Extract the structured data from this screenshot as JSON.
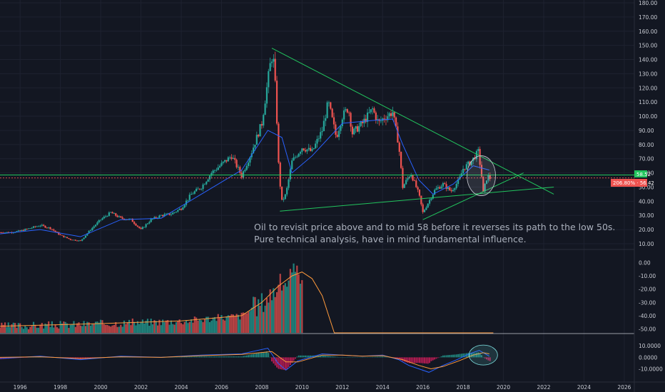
{
  "chart_data": [
    {
      "type": "candlestick",
      "title": "",
      "y_axis_ticks": [
        "180.00",
        "170.00",
        "160.00",
        "150.00",
        "140.00",
        "130.00",
        "120.00",
        "110.00",
        "100.00",
        "90.00",
        "80.00",
        "70.00",
        "60.00",
        "50.00",
        "40.00",
        "30.00",
        "20.00",
        "10.00"
      ],
      "ylim": [
        10,
        180
      ],
      "x_axis_ticks": [
        "1996",
        "1998",
        "2000",
        "2002",
        "2004",
        "2006",
        "2008",
        "2010",
        "2012",
        "2014",
        "2016",
        "2018",
        "2020",
        "2022",
        "2024",
        "2026"
      ],
      "xlim": [
        1995,
        2026.5
      ],
      "series": [
        {
          "values": [
            [
              1995.0,
              18
            ],
            [
              1995.5,
              18
            ],
            [
              1996.0,
              19
            ],
            [
              1996.5,
              21
            ],
            [
              1997.0,
              23
            ],
            [
              1997.5,
              21
            ],
            [
              1998.0,
              16
            ],
            [
              1998.5,
              13
            ],
            [
              1999.0,
              12
            ],
            [
              1999.5,
              20
            ],
            [
              2000.0,
              27
            ],
            [
              2000.5,
              32
            ],
            [
              2001.0,
              28
            ],
            [
              2001.5,
              27
            ],
            [
              2002.0,
              20
            ],
            [
              2002.5,
              27
            ],
            [
              2003.0,
              30
            ],
            [
              2003.5,
              31
            ],
            [
              2004.0,
              35
            ],
            [
              2004.5,
              45
            ],
            [
              2005.0,
              50
            ],
            [
              2005.5,
              60
            ],
            [
              2006.0,
              66
            ],
            [
              2006.5,
              72
            ],
            [
              2007.0,
              58
            ],
            [
              2007.5,
              75
            ],
            [
              2008.0,
              95
            ],
            [
              2008.4,
              135
            ],
            [
              2008.55,
              145
            ],
            [
              2008.7,
              115
            ],
            [
              2008.85,
              60
            ],
            [
              2009.0,
              40
            ],
            [
              2009.2,
              45
            ],
            [
              2009.5,
              68
            ],
            [
              2010.0,
              78
            ],
            [
              2010.5,
              75
            ],
            [
              2011.0,
              90
            ],
            [
              2011.3,
              110
            ],
            [
              2011.7,
              85
            ],
            [
              2012.0,
              100
            ],
            [
              2012.3,
              106
            ],
            [
              2012.5,
              88
            ],
            [
              2013.0,
              95
            ],
            [
              2013.5,
              105
            ],
            [
              2013.8,
              95
            ],
            [
              2014.0,
              98
            ],
            [
              2014.5,
              103
            ],
            [
              2014.8,
              80
            ],
            [
              2015.0,
              50
            ],
            [
              2015.4,
              60
            ],
            [
              2015.8,
              45
            ],
            [
              2016.0,
              32
            ],
            [
              2016.3,
              40
            ],
            [
              2016.6,
              48
            ],
            [
              2017.0,
              52
            ],
            [
              2017.4,
              47
            ],
            [
              2017.8,
              55
            ],
            [
              2018.0,
              63
            ],
            [
              2018.4,
              68
            ],
            [
              2018.75,
              75
            ],
            [
              2018.9,
              60
            ],
            [
              2019.0,
              46
            ],
            [
              2019.2,
              58
            ],
            [
              2019.35,
              56
            ]
          ]
        }
      ],
      "moving_average": [
        [
          1995,
          17
        ],
        [
          1997,
          20
        ],
        [
          1999,
          15
        ],
        [
          2001,
          27
        ],
        [
          2003,
          28
        ],
        [
          2005,
          45
        ],
        [
          2007,
          62
        ],
        [
          2008.3,
          90
        ],
        [
          2009,
          85
        ],
        [
          2009.5,
          60
        ],
        [
          2010.5,
          72
        ],
        [
          2012,
          95
        ],
        [
          2013.5,
          97
        ],
        [
          2014.5,
          98
        ],
        [
          2015,
          80
        ],
        [
          2015.8,
          55
        ],
        [
          2016.5,
          45
        ],
        [
          2017.5,
          52
        ],
        [
          2018.5,
          65
        ],
        [
          2019.3,
          62
        ]
      ],
      "annotations": {
        "note_lines": [
          "Oil to revisit price above and to mid 58 before it reverses its path to the low 50s.",
          "Pure technical analysis, have in mind fundamental influence."
        ],
        "resistance_level": 58.52,
        "resistance_label": "58.52",
        "current_price_label": "206.80% · 56.42",
        "trendlines": [
          {
            "from": [
              2008.5,
              148
            ],
            "to": [
              2022.5,
              45
            ],
            "color": "#22c55e"
          },
          {
            "from": [
              2008.9,
              33
            ],
            "to": [
              2022.5,
              50
            ],
            "color": "#22c55e"
          },
          {
            "from": [
              2016.0,
              27
            ],
            "to": [
              2021,
              60
            ],
            "color": "#22c55e"
          }
        ],
        "ellipse_center": [
          2018.9,
          58
        ],
        "colors": {
          "up": "#26a69a",
          "down": "#ef5350",
          "ma": "#2962ff",
          "trend": "#22c55e",
          "level": "#22c55e",
          "price": "#ef5350"
        }
      }
    },
    {
      "type": "bar",
      "y_axis_ticks": [
        "0.00",
        "-10.00",
        "-20.00",
        "-30.00",
        "-40.00",
        "-50.00"
      ],
      "ylim": [
        -53,
        3
      ],
      "curve": [
        [
          1995,
          -48
        ],
        [
          2000,
          -46
        ],
        [
          2004,
          -44
        ],
        [
          2007,
          -40
        ],
        [
          2008,
          -30
        ],
        [
          2008.8,
          -18
        ],
        [
          2009.5,
          -10
        ],
        [
          2010,
          -7
        ],
        [
          2010.5,
          -12
        ],
        [
          2011,
          -25
        ],
        [
          2011.6,
          -53
        ],
        [
          2019.5,
          -53
        ]
      ],
      "bars_until": 2010,
      "colors": {
        "up": "#26a69a",
        "down": "#ef5350",
        "curve": "#ff9a3c"
      }
    },
    {
      "type": "line",
      "y_axis_ticks": [
        "10.0000",
        "0.0000",
        "-10.0000"
      ],
      "ylim": [
        -14,
        12
      ],
      "macd": [
        [
          1995,
          -1
        ],
        [
          1997,
          1
        ],
        [
          1999,
          -2
        ],
        [
          2001,
          1
        ],
        [
          2003,
          0
        ],
        [
          2005,
          2
        ],
        [
          2007,
          3
        ],
        [
          2008.3,
          8
        ],
        [
          2008.8,
          -5
        ],
        [
          2009.2,
          -11
        ],
        [
          2009.8,
          -3
        ],
        [
          2011,
          3
        ],
        [
          2012,
          2
        ],
        [
          2013,
          1
        ],
        [
          2014,
          2
        ],
        [
          2014.8,
          -2
        ],
        [
          2015.3,
          -7
        ],
        [
          2015.8,
          -10
        ],
        [
          2016.3,
          -13
        ],
        [
          2017,
          -7
        ],
        [
          2017.7,
          -2
        ],
        [
          2018.3,
          3
        ],
        [
          2018.8,
          6
        ],
        [
          2019.3,
          1
        ]
      ],
      "signal": [
        [
          1995,
          0
        ],
        [
          1997,
          0.5
        ],
        [
          1999,
          -1
        ],
        [
          2001,
          0.5
        ],
        [
          2003,
          0
        ],
        [
          2005,
          1.5
        ],
        [
          2007,
          2.5
        ],
        [
          2008.5,
          5
        ],
        [
          2009.2,
          -4
        ],
        [
          2009.8,
          -4
        ],
        [
          2011,
          2
        ],
        [
          2012,
          2
        ],
        [
          2013,
          1
        ],
        [
          2014,
          1.5
        ],
        [
          2015,
          -2
        ],
        [
          2015.8,
          -7
        ],
        [
          2016.4,
          -10
        ],
        [
          2017,
          -8
        ],
        [
          2017.8,
          -3
        ],
        [
          2018.5,
          2
        ],
        [
          2019,
          4
        ],
        [
          2019.3,
          3
        ]
      ],
      "ellipse_center": [
        2019.0,
        2
      ],
      "colors": {
        "macd": "#2962ff",
        "signal": "#ff9a3c",
        "hist_up": "#26a69a",
        "hist_down": "#e91e63"
      }
    }
  ]
}
